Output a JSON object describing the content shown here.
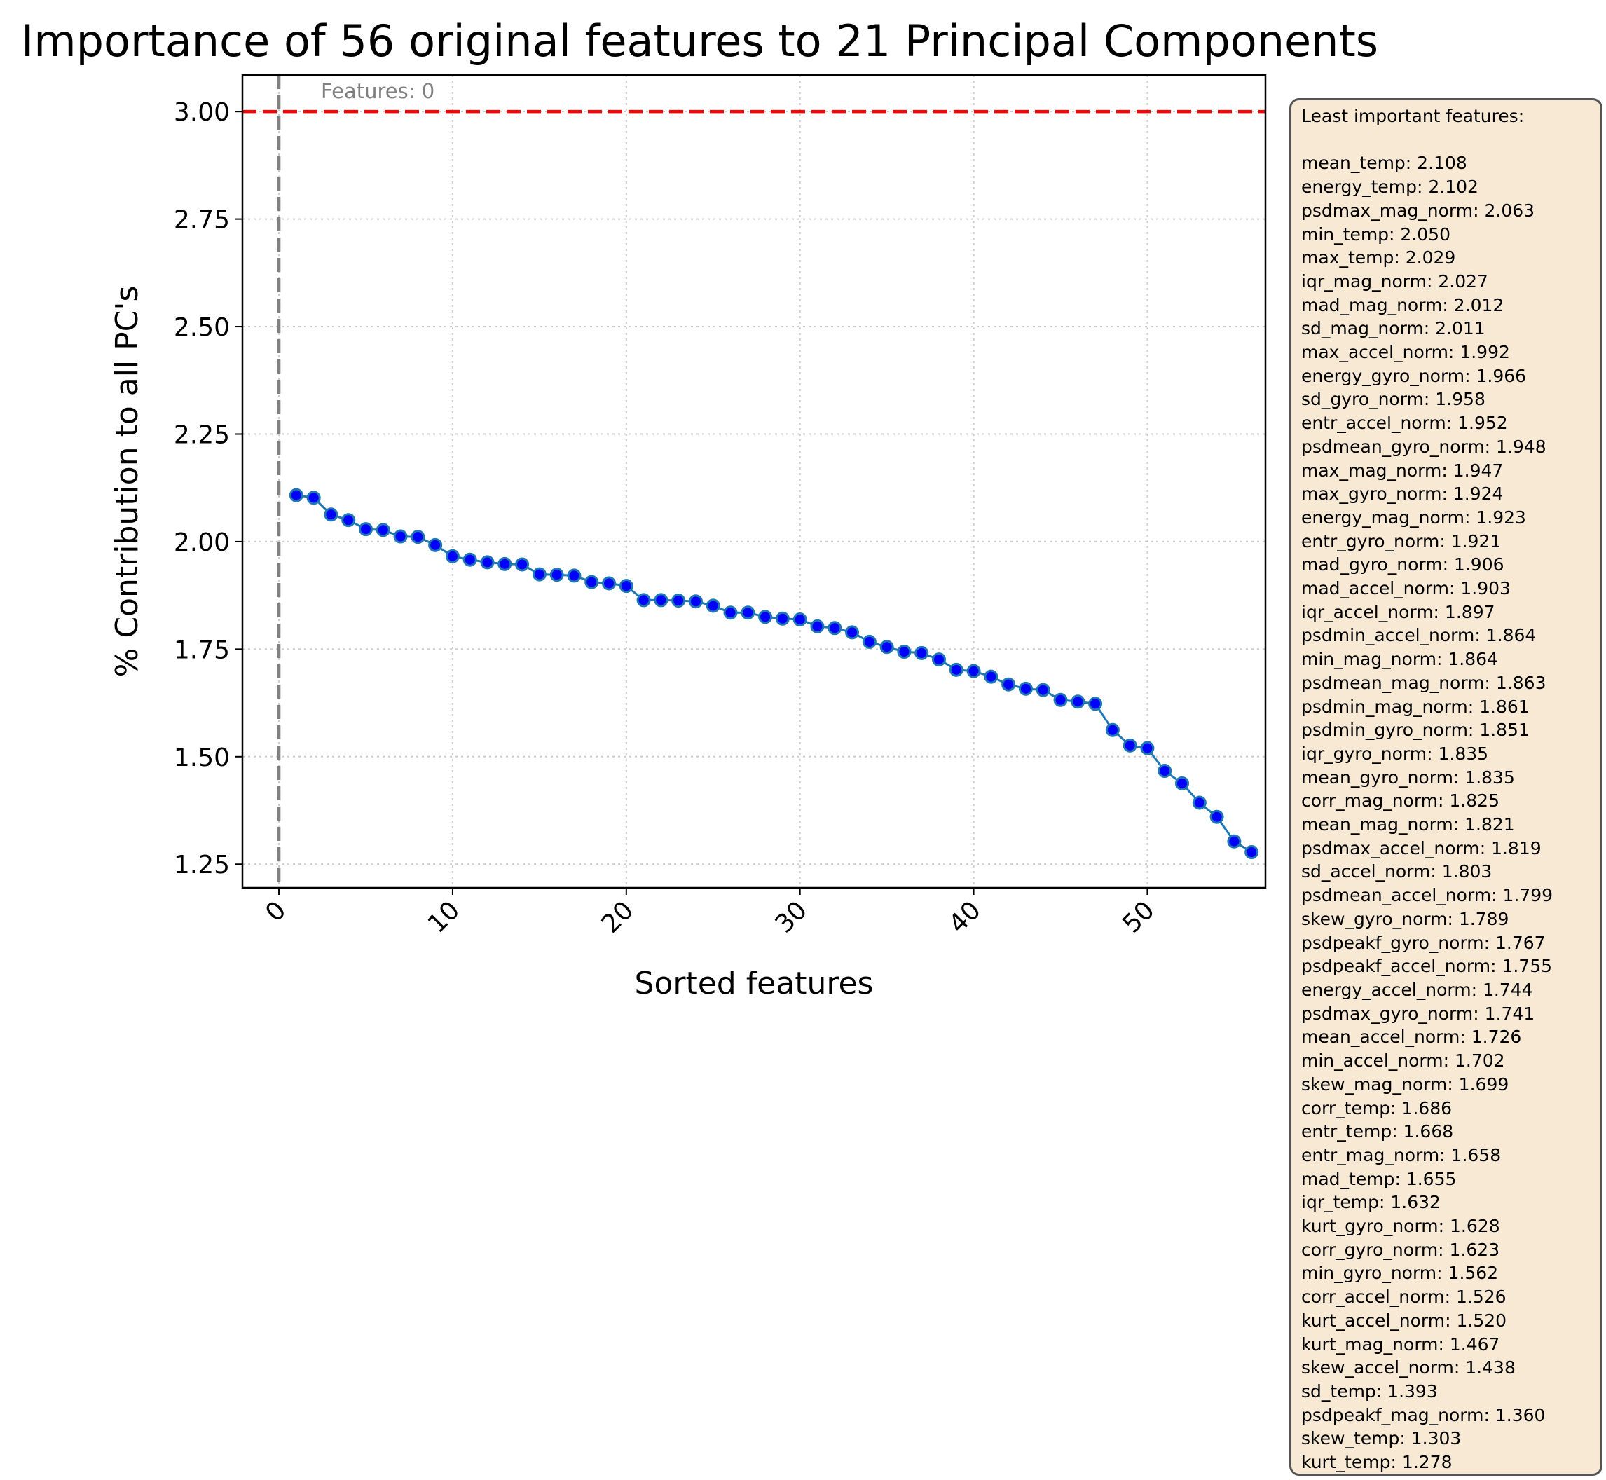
{
  "chart_data": {
    "type": "line",
    "title": "Importance of 56 original features to 21 Principal Components",
    "xlabel": "Sorted features",
    "ylabel": "% Contribution to all PC's",
    "xlim": [
      -2.1,
      56.8
    ],
    "ylim": [
      1.195,
      3.085
    ],
    "xticks": [
      0,
      10,
      20,
      30,
      40,
      50
    ],
    "yticks": [
      "1.25",
      "1.50",
      "1.75",
      "2.00",
      "2.25",
      "2.50",
      "2.75",
      "3.00"
    ],
    "grid": true,
    "threshold_line": {
      "y": 3.0,
      "color": "#ff0000",
      "style": "dashed"
    },
    "vertical_line": {
      "x": 0,
      "color": "#808080",
      "style": "dashed",
      "label": "Features: 0"
    },
    "series": [
      {
        "line_color": "#1f77b4",
        "marker_color": "#0000ff",
        "x": [
          1,
          2,
          3,
          4,
          5,
          6,
          7,
          8,
          9,
          10,
          11,
          12,
          13,
          14,
          15,
          16,
          17,
          18,
          19,
          20,
          21,
          22,
          23,
          24,
          25,
          26,
          27,
          28,
          29,
          30,
          31,
          32,
          33,
          34,
          35,
          36,
          37,
          38,
          39,
          40,
          41,
          42,
          43,
          44,
          45,
          46,
          47,
          48,
          49,
          50,
          51,
          52,
          53,
          54,
          55,
          56
        ],
        "y": [
          2.108,
          2.102,
          2.063,
          2.05,
          2.029,
          2.027,
          2.012,
          2.011,
          1.992,
          1.966,
          1.958,
          1.952,
          1.948,
          1.947,
          1.924,
          1.923,
          1.921,
          1.906,
          1.903,
          1.897,
          1.864,
          1.864,
          1.863,
          1.861,
          1.851,
          1.835,
          1.835,
          1.825,
          1.821,
          1.819,
          1.803,
          1.799,
          1.789,
          1.767,
          1.755,
          1.744,
          1.741,
          1.726,
          1.702,
          1.699,
          1.686,
          1.668,
          1.658,
          1.655,
          1.632,
          1.628,
          1.623,
          1.562,
          1.526,
          1.52,
          1.467,
          1.438,
          1.393,
          1.36,
          1.303,
          1.278
        ]
      }
    ],
    "annotation_box": {
      "heading": "Least important features:",
      "items": [
        "mean_temp: 2.108",
        "energy_temp: 2.102",
        "psdmax_mag_norm: 2.063",
        "min_temp: 2.050",
        "max_temp: 2.029",
        "iqr_mag_norm: 2.027",
        "mad_mag_norm: 2.012",
        "sd_mag_norm: 2.011",
        "max_accel_norm: 1.992",
        "energy_gyro_norm: 1.966",
        "sd_gyro_norm: 1.958",
        "entr_accel_norm: 1.952",
        "psdmean_gyro_norm: 1.948",
        "max_mag_norm: 1.947",
        "max_gyro_norm: 1.924",
        "energy_mag_norm: 1.923",
        "entr_gyro_norm: 1.921",
        "mad_gyro_norm: 1.906",
        "mad_accel_norm: 1.903",
        "iqr_accel_norm: 1.897",
        "psdmin_accel_norm: 1.864",
        "min_mag_norm: 1.864",
        "psdmean_mag_norm: 1.863",
        "psdmin_mag_norm: 1.861",
        "psdmin_gyro_norm: 1.851",
        "iqr_gyro_norm: 1.835",
        "mean_gyro_norm: 1.835",
        "corr_mag_norm: 1.825",
        "mean_mag_norm: 1.821",
        "psdmax_accel_norm: 1.819",
        "sd_accel_norm: 1.803",
        "psdmean_accel_norm: 1.799",
        "skew_gyro_norm: 1.789",
        "psdpeakf_gyro_norm: 1.767",
        "psdpeakf_accel_norm: 1.755",
        "energy_accel_norm: 1.744",
        "psdmax_gyro_norm: 1.741",
        "mean_accel_norm: 1.726",
        "min_accel_norm: 1.702",
        "skew_mag_norm: 1.699",
        "corr_temp: 1.686",
        "entr_temp: 1.668",
        "entr_mag_norm: 1.658",
        "mad_temp: 1.655",
        "iqr_temp: 1.632",
        "kurt_gyro_norm: 1.628",
        "corr_gyro_norm: 1.623",
        "min_gyro_norm: 1.562",
        "corr_accel_norm: 1.526",
        "kurt_accel_norm: 1.520",
        "kurt_mag_norm: 1.467",
        "skew_accel_norm: 1.438",
        "sd_temp: 1.393",
        "psdpeakf_mag_norm: 1.360",
        "skew_temp: 1.303",
        "kurt_temp: 1.278"
      ]
    }
  }
}
